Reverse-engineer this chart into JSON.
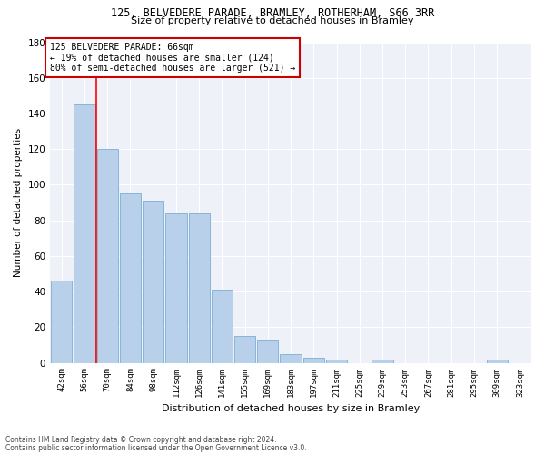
{
  "title1": "125, BELVEDERE PARADE, BRAMLEY, ROTHERHAM, S66 3RR",
  "title2": "Size of property relative to detached houses in Bramley",
  "xlabel": "Distribution of detached houses by size in Bramley",
  "ylabel": "Number of detached properties",
  "categories": [
    "42sqm",
    "56sqm",
    "70sqm",
    "84sqm",
    "98sqm",
    "112sqm",
    "126sqm",
    "141sqm",
    "155sqm",
    "169sqm",
    "183sqm",
    "197sqm",
    "211sqm",
    "225sqm",
    "239sqm",
    "253sqm",
    "267sqm",
    "281sqm",
    "295sqm",
    "309sqm",
    "323sqm"
  ],
  "values": [
    46,
    145,
    120,
    95,
    91,
    84,
    84,
    41,
    15,
    13,
    5,
    3,
    2,
    0,
    2,
    0,
    0,
    0,
    0,
    2,
    0
  ],
  "bar_color": "#b8d0ea",
  "bar_edge_color": "#7aadd4",
  "vline_x": 1.5,
  "annotation_line1": "125 BELVEDERE PARADE: 66sqm",
  "annotation_line2": "← 19% of detached houses are smaller (124)",
  "annotation_line3": "80% of semi-detached houses are larger (521) →",
  "annotation_box_color": "#ffffff",
  "annotation_box_edge_color": "#cc0000",
  "footer1": "Contains HM Land Registry data © Crown copyright and database right 2024.",
  "footer2": "Contains public sector information licensed under the Open Government Licence v3.0.",
  "ylim": [
    0,
    180
  ],
  "yticks": [
    0,
    20,
    40,
    60,
    80,
    100,
    120,
    140,
    160,
    180
  ],
  "bg_color": "#eef2f8"
}
